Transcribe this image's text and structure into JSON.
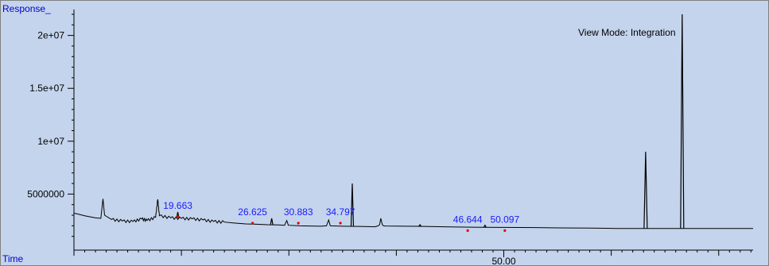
{
  "chart_data": {
    "type": "line",
    "ylabel": "Response_",
    "xlabel": "Time",
    "view_mode": "View Mode: Integration",
    "xlim": [
      10.0,
      73.2
    ],
    "ylim": [
      0,
      22000000.0
    ],
    "y_ticks": [
      {
        "value": 5000000,
        "label": "5000000"
      },
      {
        "value": 10000000,
        "label": "1e+07"
      },
      {
        "value": 15000000,
        "label": "1.5e+07"
      },
      {
        "value": 20000000,
        "label": "2e+07"
      }
    ],
    "x_major_ticks": [
      {
        "value": 50.0,
        "label": "50.00"
      }
    ],
    "x_minor_ticks": [
      20,
      30,
      40,
      60,
      70
    ],
    "peak_labels": [
      {
        "rt": 19.663,
        "label": "19.663",
        "response": 3300000
      },
      {
        "rt": 26.625,
        "label": "26.625",
        "response": 2700000
      },
      {
        "rt": 30.883,
        "label": "30.883",
        "response": 2700000
      },
      {
        "rt": 34.797,
        "label": "34.797",
        "response": 2700000
      },
      {
        "rt": 46.644,
        "label": "46.644",
        "response": 2000000
      },
      {
        "rt": 50.097,
        "label": "50.097",
        "response": 2000000
      }
    ],
    "series": [
      {
        "points": [
          [
            10.0,
            3200000
          ],
          [
            11.0,
            2950000
          ],
          [
            12.0,
            2750000
          ],
          [
            12.5,
            2700000
          ],
          [
            12.7,
            4550000
          ],
          [
            12.85,
            3000000
          ],
          [
            13.5,
            2600000
          ],
          [
            14.5,
            2450000
          ],
          [
            15.5,
            2400000
          ],
          [
            16.3,
            2650000
          ],
          [
            16.8,
            2500000
          ],
          [
            17.6,
            2800000
          ],
          [
            17.8,
            4500000
          ],
          [
            17.95,
            2950000
          ],
          [
            19.0,
            2750000
          ],
          [
            20.0,
            2700000
          ],
          [
            21.0,
            2650000
          ],
          [
            22.0,
            2550000
          ],
          [
            23.0,
            2400000
          ],
          [
            24.0,
            2350000
          ],
          [
            25.0,
            2250000
          ],
          [
            26.0,
            2180000
          ],
          [
            27.0,
            2150000
          ],
          [
            28.0,
            2100000
          ],
          [
            29.0,
            2080000
          ],
          [
            29.6,
            2050000
          ],
          [
            29.8,
            2500000
          ],
          [
            29.95,
            2050000
          ],
          [
            31.0,
            2000000
          ],
          [
            33.0,
            1960000
          ],
          [
            33.5,
            2000000
          ],
          [
            33.7,
            2550000
          ],
          [
            33.85,
            2000000
          ],
          [
            35.0,
            1960000
          ],
          [
            37.0,
            1930000
          ],
          [
            38.0,
            1910000
          ],
          [
            38.3,
            2000000
          ],
          [
            38.45,
            2100000
          ],
          [
            38.55,
            2700000
          ],
          [
            38.7,
            2100000
          ],
          [
            38.8,
            2000000
          ],
          [
            39.0,
            1980000
          ],
          [
            42.0,
            1950000
          ],
          [
            45.0,
            1890000
          ],
          [
            47.0,
            1870000
          ],
          [
            48.0,
            1860000
          ],
          [
            50.0,
            1850000
          ],
          [
            53.0,
            1830000
          ],
          [
            55.0,
            1800000
          ],
          [
            58.0,
            1780000
          ],
          [
            60.5,
            1750000
          ],
          [
            63.0,
            1750000
          ],
          [
            66.0,
            1740000
          ],
          [
            69.0,
            1740000
          ],
          [
            72.0,
            1740000
          ],
          [
            73.2,
            1740000
          ]
        ],
        "peaks": [
          {
            "rt": 19.663,
            "height": 3300000
          },
          {
            "rt": 28.4,
            "height": 2700000
          },
          {
            "rt": 35.9,
            "height": 6000000
          },
          {
            "rt": 42.2,
            "height": 2100000
          },
          {
            "rt": 48.25,
            "height": 2050000
          },
          {
            "rt": 63.2,
            "height": 9000000
          },
          {
            "rt": 66.6,
            "height": 22000000
          }
        ]
      }
    ]
  }
}
